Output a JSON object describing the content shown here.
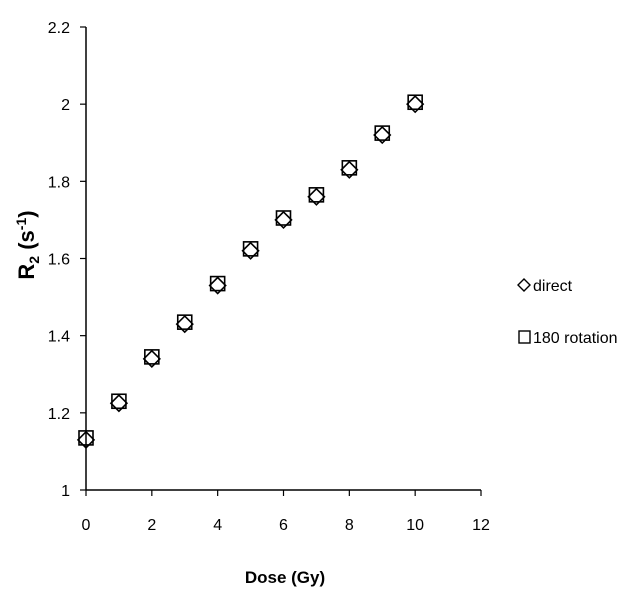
{
  "chart_data": {
    "type": "scatter",
    "title": "",
    "xlabel": "Dose (Gy)",
    "ylabel": {
      "main": "R",
      "sub": "2",
      "unit_open": " (s",
      "sup": "-1",
      "unit_close": ")"
    },
    "xlim": [
      0,
      12
    ],
    "ylim": [
      1,
      2.2
    ],
    "xticks": [
      "0",
      "2",
      "4",
      "6",
      "8",
      "10",
      "12"
    ],
    "yticks": [
      "1",
      "1.2",
      "1.4",
      "1.6",
      "1.8",
      "2",
      "2.2"
    ],
    "grid": false,
    "legend_position": "right",
    "series": [
      {
        "name": "direct",
        "marker": "diamond",
        "x": [
          0,
          1,
          2,
          3,
          4,
          5,
          6,
          7,
          8,
          9,
          10
        ],
        "y": [
          1.13,
          1.225,
          1.34,
          1.43,
          1.53,
          1.62,
          1.7,
          1.76,
          1.83,
          1.92,
          2.0
        ]
      },
      {
        "name": "180 rotation",
        "marker": "square",
        "x": [
          0,
          1,
          2,
          3,
          4,
          5,
          6,
          7,
          8,
          9,
          10
        ],
        "y": [
          1.135,
          1.23,
          1.345,
          1.435,
          1.535,
          1.625,
          1.705,
          1.765,
          1.835,
          1.925,
          2.005
        ]
      }
    ],
    "colors": {
      "marker_stroke": "#000000",
      "axis": "#000000"
    }
  }
}
